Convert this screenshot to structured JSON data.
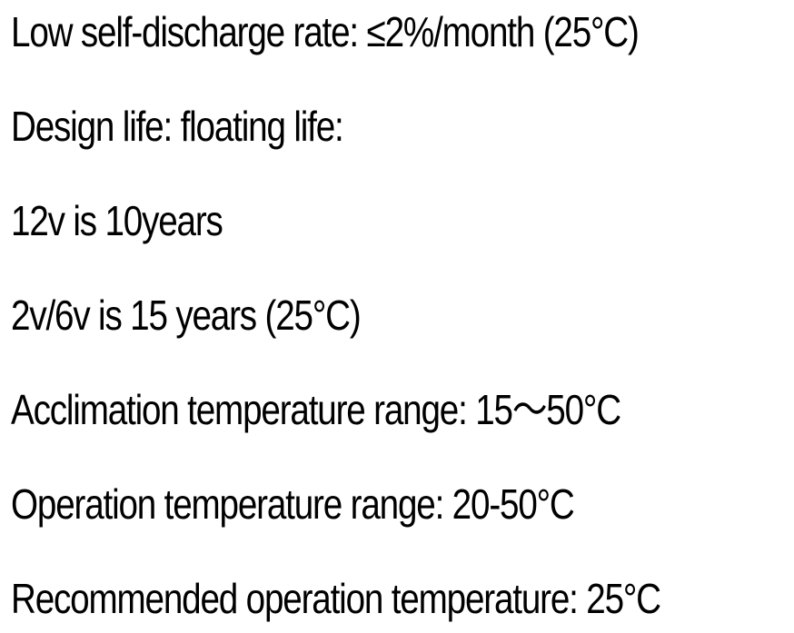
{
  "lines": [
    "Low self-discharge rate: ≤2%/month (25°C)",
    "Design life: floating life:",
    "12v is 10years",
    "2v/6v is 15 years (25°C)",
    "Acclimation temperature range: 15～50°C",
    "Operation temperature range: 20-50°C",
    "Recommended operation temperature: 25°C"
  ]
}
